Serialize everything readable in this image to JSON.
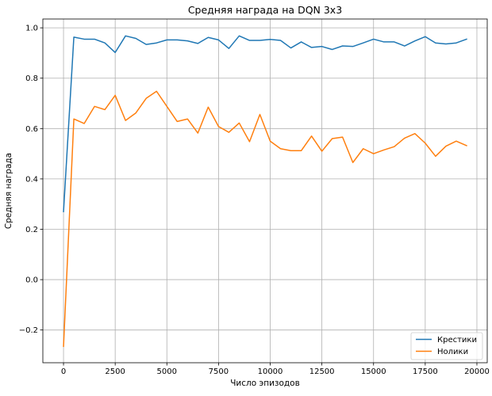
{
  "chart_data": {
    "type": "line",
    "title": "Средняя награда на DQN 3x3",
    "xlabel": "Число эпизодов",
    "ylabel": "Средняя награда",
    "xlim": [
      -1000,
      20500
    ],
    "ylim": [
      -0.33,
      1.035
    ],
    "xticks": [
      0,
      2500,
      5000,
      7500,
      10000,
      12500,
      15000,
      17500,
      20000
    ],
    "yticks": [
      -0.2,
      0.0,
      0.2,
      0.4,
      0.6,
      0.8,
      1.0
    ],
    "xtick_labels": [
      "0",
      "2500",
      "5000",
      "7500",
      "10000",
      "12500",
      "15000",
      "17500",
      "20000"
    ],
    "ytick_labels": [
      "−0.2",
      "0.0",
      "0.2",
      "0.4",
      "0.6",
      "0.8",
      "1.0"
    ],
    "grid": true,
    "legend_position": "bottom-right",
    "x": [
      0,
      500,
      1000,
      1500,
      2000,
      2500,
      3000,
      3500,
      4000,
      4500,
      5000,
      5500,
      6000,
      6500,
      7000,
      7500,
      8000,
      8500,
      9000,
      9500,
      10000,
      10500,
      11000,
      11500,
      12000,
      12500,
      13000,
      13500,
      14000,
      14500,
      15000,
      15500,
      16000,
      16500,
      17000,
      17500,
      18000,
      18500,
      19000,
      19500
    ],
    "series": [
      {
        "name": "Крестики",
        "color": "#1f77b4",
        "values": [
          0.27,
          0.963,
          0.955,
          0.955,
          0.94,
          0.902,
          0.968,
          0.958,
          0.934,
          0.94,
          0.952,
          0.952,
          0.948,
          0.938,
          0.962,
          0.952,
          0.918,
          0.968,
          0.95,
          0.95,
          0.954,
          0.95,
          0.92,
          0.944,
          0.922,
          0.926,
          0.914,
          0.928,
          0.926,
          0.94,
          0.955,
          0.944,
          0.944,
          0.928,
          0.948,
          0.965,
          0.94,
          0.936,
          0.94,
          0.955
        ]
      },
      {
        "name": "Нолики",
        "color": "#ff7f0e",
        "values": [
          -0.265,
          0.638,
          0.62,
          0.688,
          0.675,
          0.732,
          0.632,
          0.662,
          0.72,
          0.748,
          0.688,
          0.628,
          0.638,
          0.582,
          0.685,
          0.608,
          0.585,
          0.622,
          0.548,
          0.656,
          0.55,
          0.52,
          0.512,
          0.512,
          0.57,
          0.51,
          0.56,
          0.566,
          0.465,
          0.52,
          0.5,
          0.515,
          0.528,
          0.562,
          0.58,
          0.542,
          0.49,
          0.53,
          0.55,
          0.532
        ]
      }
    ]
  }
}
